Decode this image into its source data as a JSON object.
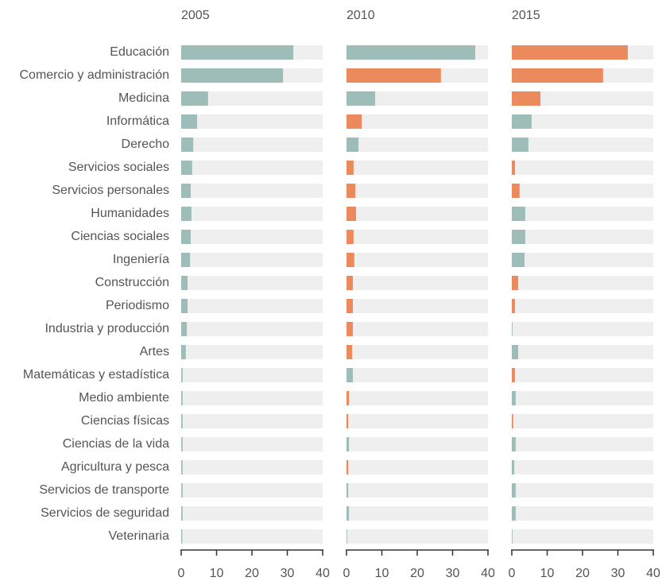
{
  "chart_data": {
    "type": "bar",
    "orientation": "horizontal",
    "categories": [
      "Educación",
      "Comercio y administración",
      "Medicina",
      "Informática",
      "Derecho",
      "Servicios sociales",
      "Servicios personales",
      "Humanidades",
      "Ciencias sociales",
      "Ingeniería",
      "Construcción",
      "Periodismo",
      "Industria y producción",
      "Artes",
      "Matemáticas y estadística",
      "Medio ambiente",
      "Ciencias físicas",
      "Ciencias de la vida",
      "Agricultura y pesca",
      "Servicios de transporte",
      "Servicios de seguridad",
      "Veterinaria"
    ],
    "series": [
      {
        "name": "2005",
        "values": [
          31.7,
          28.8,
          7.6,
          4.5,
          3.4,
          3.1,
          2.7,
          2.9,
          2.7,
          2.5,
          1.8,
          1.8,
          1.6,
          1.3,
          0.4,
          0.4,
          0.4,
          0.4,
          0.4,
          0.4,
          0.4,
          0.3
        ],
        "colors": [
          "#9fbdb8",
          "#9fbdb8",
          "#9fbdb8",
          "#9fbdb8",
          "#9fbdb8",
          "#9fbdb8",
          "#9fbdb8",
          "#9fbdb8",
          "#9fbdb8",
          "#9fbdb8",
          "#9fbdb8",
          "#9fbdb8",
          "#9fbdb8",
          "#9fbdb8",
          "#9fbdb8",
          "#9fbdb8",
          "#9fbdb8",
          "#9fbdb8",
          "#9fbdb8",
          "#9fbdb8",
          "#9fbdb8",
          "#9fbdb8"
        ]
      },
      {
        "name": "2010",
        "values": [
          36.4,
          26.7,
          8.1,
          4.3,
          3.4,
          2.0,
          2.5,
          2.7,
          2.0,
          2.2,
          1.8,
          1.8,
          1.8,
          1.6,
          1.8,
          0.7,
          0.5,
          0.7,
          0.5,
          0.5,
          0.7,
          0.2
        ],
        "colors": [
          "#9fbdb8",
          "#eb8a5c",
          "#9fbdb8",
          "#eb8a5c",
          "#9fbdb8",
          "#eb8a5c",
          "#eb8a5c",
          "#eb8a5c",
          "#eb8a5c",
          "#eb8a5c",
          "#eb8a5c",
          "#eb8a5c",
          "#eb8a5c",
          "#eb8a5c",
          "#9fbdb8",
          "#eb8a5c",
          "#eb8a5c",
          "#9fbdb8",
          "#eb8a5c",
          "#9fbdb8",
          "#9fbdb8",
          "#9fbdb8"
        ]
      },
      {
        "name": "2015",
        "values": [
          32.8,
          25.8,
          8.1,
          5.6,
          4.7,
          0.9,
          2.2,
          3.8,
          3.8,
          3.6,
          1.8,
          0.9,
          0.2,
          1.8,
          0.9,
          1.1,
          0.4,
          1.1,
          0.7,
          1.1,
          1.1,
          0.2
        ],
        "colors": [
          "#eb8a5c",
          "#eb8a5c",
          "#eb8a5c",
          "#9fbdb8",
          "#9fbdb8",
          "#eb8a5c",
          "#eb8a5c",
          "#9fbdb8",
          "#9fbdb8",
          "#9fbdb8",
          "#eb8a5c",
          "#eb8a5c",
          "#9fbdb8",
          "#9fbdb8",
          "#eb8a5c",
          "#9fbdb8",
          "#eb8a5c",
          "#9fbdb8",
          "#9fbdb8",
          "#9fbdb8",
          "#9fbdb8",
          "#9fbdb8"
        ]
      }
    ],
    "track_color": "#efefef",
    "xlim": [
      0,
      40
    ],
    "xticks": [
      0,
      10,
      20,
      30,
      40
    ]
  }
}
